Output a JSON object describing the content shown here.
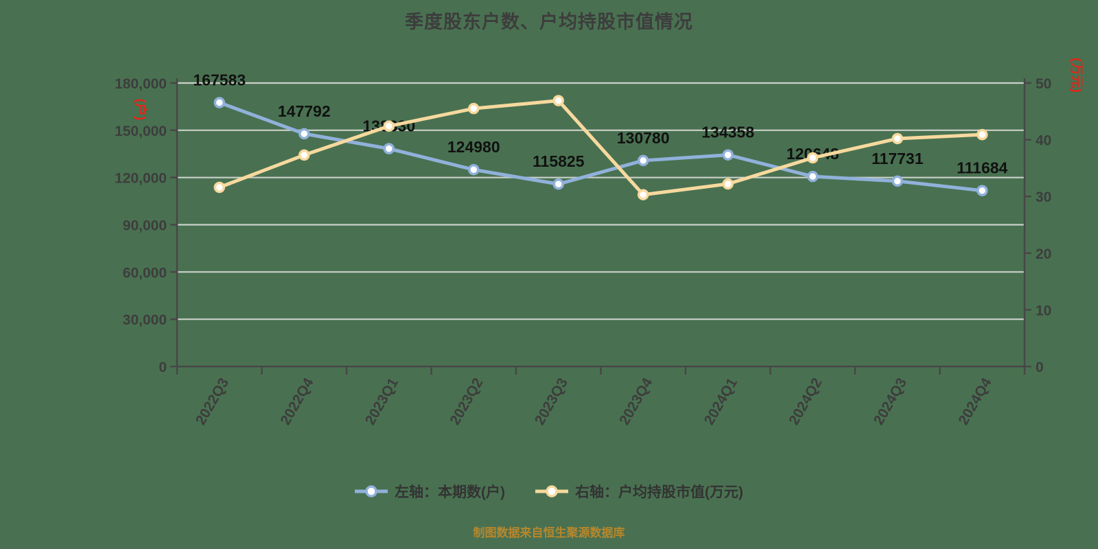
{
  "title": "季度股东户数、户均持股市值情况",
  "footer": "制图数据来自恒生聚源数据库",
  "colors": {
    "background": "#497151",
    "title_text": "#3d3d3d",
    "axis": "#474747",
    "grid": "#ccd1c9",
    "tick_text": "#3d3d3d",
    "point_label_text": "#111111",
    "unit_text": "#e02619",
    "footer_text": "#b8872b",
    "legend_text": "#333333",
    "series_blue": "#91b1db",
    "series_yellow": "#f7d99e",
    "marker_fill": "#ffffff"
  },
  "chart_data": {
    "type": "line",
    "title": "季度股东户数、户均持股市值情况",
    "grid": true,
    "legend_position": "bottom",
    "categories": [
      "2022Q3",
      "2022Q4",
      "2023Q1",
      "2023Q2",
      "2023Q3",
      "2023Q4",
      "2024Q1",
      "2024Q2",
      "2024Q3",
      "2024Q4"
    ],
    "left_axis": {
      "unit": "(户)",
      "min": 0,
      "max": 180000,
      "tick_step": 30000,
      "tick_labels": [
        "0",
        "30,000",
        "60,000",
        "90,000",
        "120,000",
        "150,000",
        "180,000"
      ]
    },
    "right_axis": {
      "unit": "(万元)",
      "min": 0,
      "max": 50,
      "tick_step": 10,
      "tick_labels": [
        "0",
        "10",
        "20",
        "30",
        "40",
        "50"
      ]
    },
    "series": [
      {
        "name": "左轴：本期数(户)",
        "axis": "left",
        "color": "#91b1db",
        "values": [
          167583,
          147792,
          138330,
          124980,
          115825,
          130780,
          134358,
          120648,
          117731,
          111684
        ],
        "point_labels": [
          "167583",
          "147792",
          "138330",
          "124980",
          "115825",
          "130780",
          "134358",
          "120648",
          "117731",
          "111684"
        ]
      },
      {
        "name": "右轴：户均持股市值(万元)",
        "axis": "right",
        "color": "#f7d99e",
        "values": [
          31.6,
          37.3,
          42.4,
          45.5,
          46.9,
          30.3,
          32.2,
          36.8,
          40.2,
          40.9
        ],
        "point_labels": []
      }
    ]
  }
}
